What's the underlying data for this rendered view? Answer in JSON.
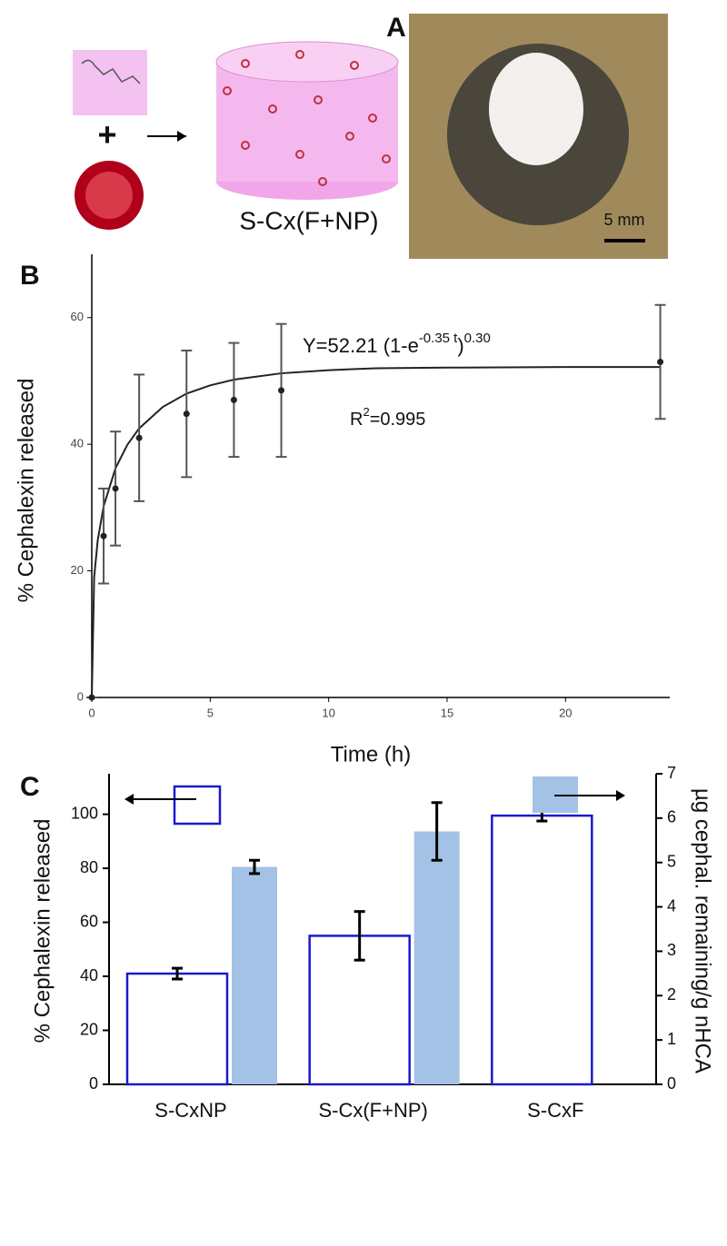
{
  "panel_a": {
    "label": "A",
    "product": "S-Cx(F+NP)",
    "scale_bar": "5 mm"
  },
  "chart_data": [
    {
      "type": "scatter",
      "label": "B",
      "x_label": "Time (h)",
      "y_label": "% Cephalexin released",
      "annotation": {
        "parts": [
          "Y=52.21 (1-e",
          "-0.35 t",
          ")",
          "0.30"
        ]
      },
      "r2": {
        "parts": [
          "R",
          "2",
          "=0.995"
        ]
      },
      "xlim": [
        0,
        24.4
      ],
      "xticks": [
        0,
        5,
        10,
        15,
        20
      ],
      "ylim": [
        0,
        70
      ],
      "yticks": [
        0,
        20,
        40,
        60
      ],
      "color": "#222222",
      "series": [
        {
          "x": [
            0,
            0.5,
            1,
            2,
            4,
            6,
            8,
            24
          ],
          "values": [
            0,
            25.5,
            33,
            41,
            44.8,
            47,
            48.5,
            53
          ],
          "errors": [
            0,
            7.5,
            9,
            10,
            10,
            9,
            10.5,
            9
          ]
        }
      ],
      "fit": {
        "x": [
          0,
          0.1,
          0.25,
          0.5,
          1,
          1.5,
          2,
          3,
          4,
          5,
          6,
          8,
          10,
          12,
          15,
          20,
          24
        ],
        "values": [
          0,
          19.0,
          24.8,
          30.2,
          36.2,
          39.9,
          42.5,
          45.9,
          48.0,
          49.3,
          50.2,
          51.2,
          51.7,
          52.0,
          52.1,
          52.2,
          52.2
        ]
      }
    },
    {
      "type": "bar",
      "label": "C",
      "categories": [
        "S-CxNP",
        "S-Cx(F+NP)",
        "S-CxF"
      ],
      "y_label": "% Cephalexin released",
      "y2_label": "µg cephal. remaining/g nHCA",
      "ylim": [
        0,
        115
      ],
      "yticks": [
        0,
        20,
        40,
        60,
        80,
        100
      ],
      "y2lim": [
        0,
        7
      ],
      "y2ticks": [
        0,
        1,
        2,
        3,
        4,
        5,
        6,
        7
      ],
      "series": [
        {
          "color": "#1a1acc",
          "values": [
            41,
            55,
            99.5
          ],
          "errors": [
            2,
            9,
            2
          ]
        },
        {
          "color": "#a4c2e6",
          "axis": "y2",
          "values": [
            4.9,
            5.7,
            null
          ],
          "errors": [
            0.15,
            0.65,
            null
          ]
        }
      ]
    }
  ]
}
